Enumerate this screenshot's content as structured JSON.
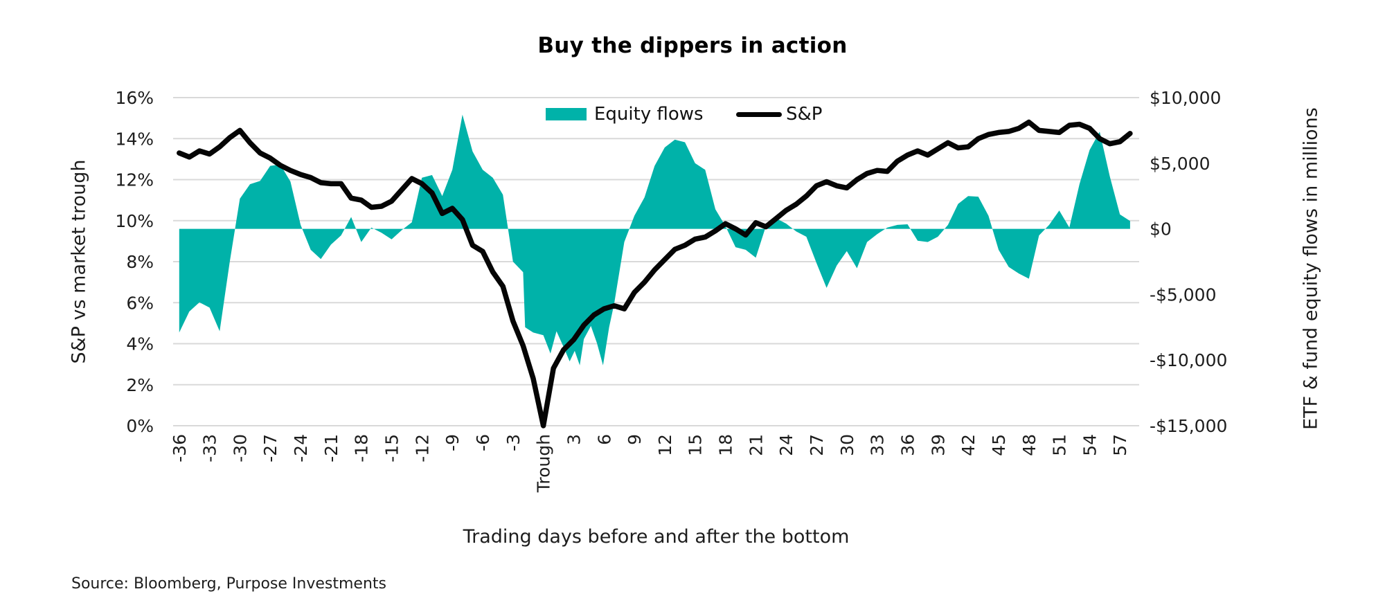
{
  "title": "Buy the dippers in action",
  "source": "Source: Bloomberg, Purpose Investments",
  "chart_data": {
    "type": "combo-area-line",
    "title": "Buy the dippers in action",
    "xlabel": "Trading days before and after the bottom",
    "grid": "horizontal gridlines every 2% (left axis), color #d9d9d9",
    "legend_position": "top-center-inside",
    "background": "#ffffff",
    "x_axis": {
      "range_days": [
        -36.6,
        58.9
      ],
      "tick_values": [
        -36,
        -33,
        -30,
        -27,
        -24,
        -21,
        -18,
        -15,
        -12,
        -9,
        -6,
        -3,
        0,
        3,
        6,
        9,
        12,
        15,
        18,
        21,
        24,
        27,
        30,
        33,
        36,
        39,
        42,
        45,
        48,
        51,
        54,
        57
      ],
      "tick_labels": [
        "-36",
        "-33",
        "-30",
        "-27",
        "-24",
        "-21",
        "-18",
        "-15",
        "-12",
        "-9",
        "-6",
        "-3",
        "Trough",
        "3",
        "6",
        "9",
        "12",
        "15",
        "18",
        "21",
        "24",
        "27",
        "30",
        "33",
        "36",
        "39",
        "42",
        "45",
        "48",
        "51",
        "54",
        "57"
      ],
      "tick_rotation_deg": -90
    },
    "left_axis": {
      "label": "S&P vs market trough",
      "unit": "%",
      "min": 0,
      "max": 16,
      "tick_values": [
        16,
        14,
        12,
        10,
        8,
        6,
        4,
        2,
        0
      ],
      "tick_labels": [
        "16%",
        "14%",
        "12%",
        "10%",
        "8%",
        "6%",
        "4%",
        "2%",
        "0%"
      ]
    },
    "right_axis": {
      "label": "ETF & fund equity flows in millions",
      "unit": "$M",
      "min": -15000,
      "max": 10000,
      "tick_values": [
        10000,
        5000,
        0,
        -5000,
        -10000,
        -15000
      ],
      "tick_labels": [
        "$10,000",
        "$5,000",
        "$0",
        "-$5,000",
        "-$10,000",
        "-$15,000"
      ]
    },
    "series": [
      {
        "name": "Equity flows",
        "type": "area",
        "axis": "right",
        "color": "#00b2a9",
        "x": [
          -36,
          -35,
          -34,
          -33,
          -32,
          -31,
          -30,
          -29,
          -28,
          -27,
          -26,
          -25,
          -24,
          -23,
          -22,
          -21,
          -20,
          -19,
          -18,
          -17,
          -16,
          -15,
          -14,
          -13,
          -12,
          -11,
          -10,
          -9,
          -8,
          -7,
          -6,
          -5,
          -4,
          -3,
          -2,
          -1.8,
          -1,
          0,
          0.7,
          1.3,
          2,
          2.6,
          3.1,
          3.6,
          4,
          4.7,
          5.3,
          5.9,
          6.5,
          7,
          8,
          9,
          10,
          11,
          12,
          13,
          14,
          15,
          16,
          17,
          18,
          19,
          20,
          21,
          22,
          23,
          24,
          25,
          26,
          27,
          28,
          29,
          30,
          31,
          32,
          33,
          34,
          35,
          36,
          37,
          38,
          39,
          40,
          41,
          42,
          43,
          44,
          45,
          46,
          47,
          48,
          49,
          50,
          51,
          52,
          53,
          54,
          55,
          56,
          57,
          58
        ],
        "values": [
          -7900,
          -6300,
          -5600,
          -6000,
          -7800,
          -2500,
          2300,
          3400,
          3650,
          4800,
          4900,
          3600,
          300,
          -1600,
          -2300,
          -1200,
          -500,
          900,
          -1000,
          100,
          -300,
          -800,
          -100,
          500,
          3900,
          4100,
          2500,
          4500,
          8700,
          5900,
          4500,
          3900,
          2600,
          -2500,
          -3300,
          -7500,
          -7900,
          -8100,
          -9500,
          -7800,
          -9000,
          -10100,
          -9300,
          -10400,
          -8400,
          -7400,
          -8700,
          -10400,
          -7500,
          -5700,
          -1000,
          1000,
          2400,
          4800,
          6200,
          6800,
          6600,
          5000,
          4500,
          1500,
          200,
          -1400,
          -1600,
          -2200,
          200,
          800,
          400,
          -200,
          -600,
          -2600,
          -4500,
          -2800,
          -1700,
          -3000,
          -1000,
          -400,
          100,
          300,
          350,
          -900,
          -1000,
          -600,
          300,
          1900,
          2500,
          2450,
          1000,
          -1600,
          -2900,
          -3400,
          -3800,
          -500,
          300,
          1400,
          100,
          3400,
          6000,
          7400,
          4000,
          1100,
          600
        ]
      },
      {
        "name": "S&P",
        "type": "line",
        "axis": "left",
        "color": "#050505",
        "stroke_width": 7.5,
        "x": [
          -36,
          -35,
          -34,
          -33,
          -32,
          -31,
          -30,
          -29,
          -28,
          -27,
          -26,
          -25,
          -24,
          -23,
          -22,
          -21,
          -20,
          -19,
          -18,
          -17,
          -16,
          -15,
          -14,
          -13,
          -12,
          -11,
          -10,
          -9,
          -8,
          -7,
          -6,
          -5,
          -4,
          -3,
          -2,
          -1,
          0,
          1,
          2,
          3,
          4,
          5,
          6,
          7,
          8,
          9,
          10,
          11,
          12,
          13,
          14,
          15,
          16,
          17,
          18,
          19,
          20,
          21,
          22,
          23,
          24,
          25,
          26,
          27,
          28,
          29,
          30,
          31,
          32,
          33,
          34,
          35,
          36,
          37,
          38,
          39,
          40,
          41,
          42,
          43,
          44,
          45,
          46,
          47,
          48,
          49,
          50,
          51,
          52,
          53,
          54,
          55,
          56,
          57,
          58
        ],
        "values": [
          13.3,
          13.1,
          13.4,
          13.25,
          13.6,
          14.05,
          14.4,
          13.8,
          13.3,
          13.05,
          12.7,
          12.45,
          12.25,
          12.1,
          11.85,
          11.8,
          11.8,
          11.1,
          11.0,
          10.65,
          10.7,
          10.95,
          11.5,
          12.05,
          11.8,
          11.35,
          10.35,
          10.6,
          10.05,
          8.8,
          8.5,
          7.5,
          6.8,
          5.1,
          3.9,
          2.3,
          0.0,
          2.8,
          3.7,
          4.2,
          4.9,
          5.4,
          5.7,
          5.85,
          5.7,
          6.5,
          7.0,
          7.6,
          8.1,
          8.6,
          8.8,
          9.1,
          9.2,
          9.5,
          9.85,
          9.6,
          9.3,
          9.9,
          9.7,
          10.1,
          10.5,
          10.8,
          11.2,
          11.7,
          11.9,
          11.7,
          11.6,
          12.0,
          12.3,
          12.45,
          12.4,
          12.9,
          13.2,
          13.4,
          13.2,
          13.5,
          13.8,
          13.55,
          13.6,
          14.0,
          14.2,
          14.3,
          14.35,
          14.5,
          14.8,
          14.4,
          14.35,
          14.3,
          14.65,
          14.7,
          14.5,
          14.0,
          13.75,
          13.85,
          14.25
        ]
      }
    ],
    "colors": {
      "equity_flows": "#00b2a9",
      "sp_line": "#050505",
      "gridline": "#d9d9d9",
      "text": "#1d1d1d"
    }
  }
}
